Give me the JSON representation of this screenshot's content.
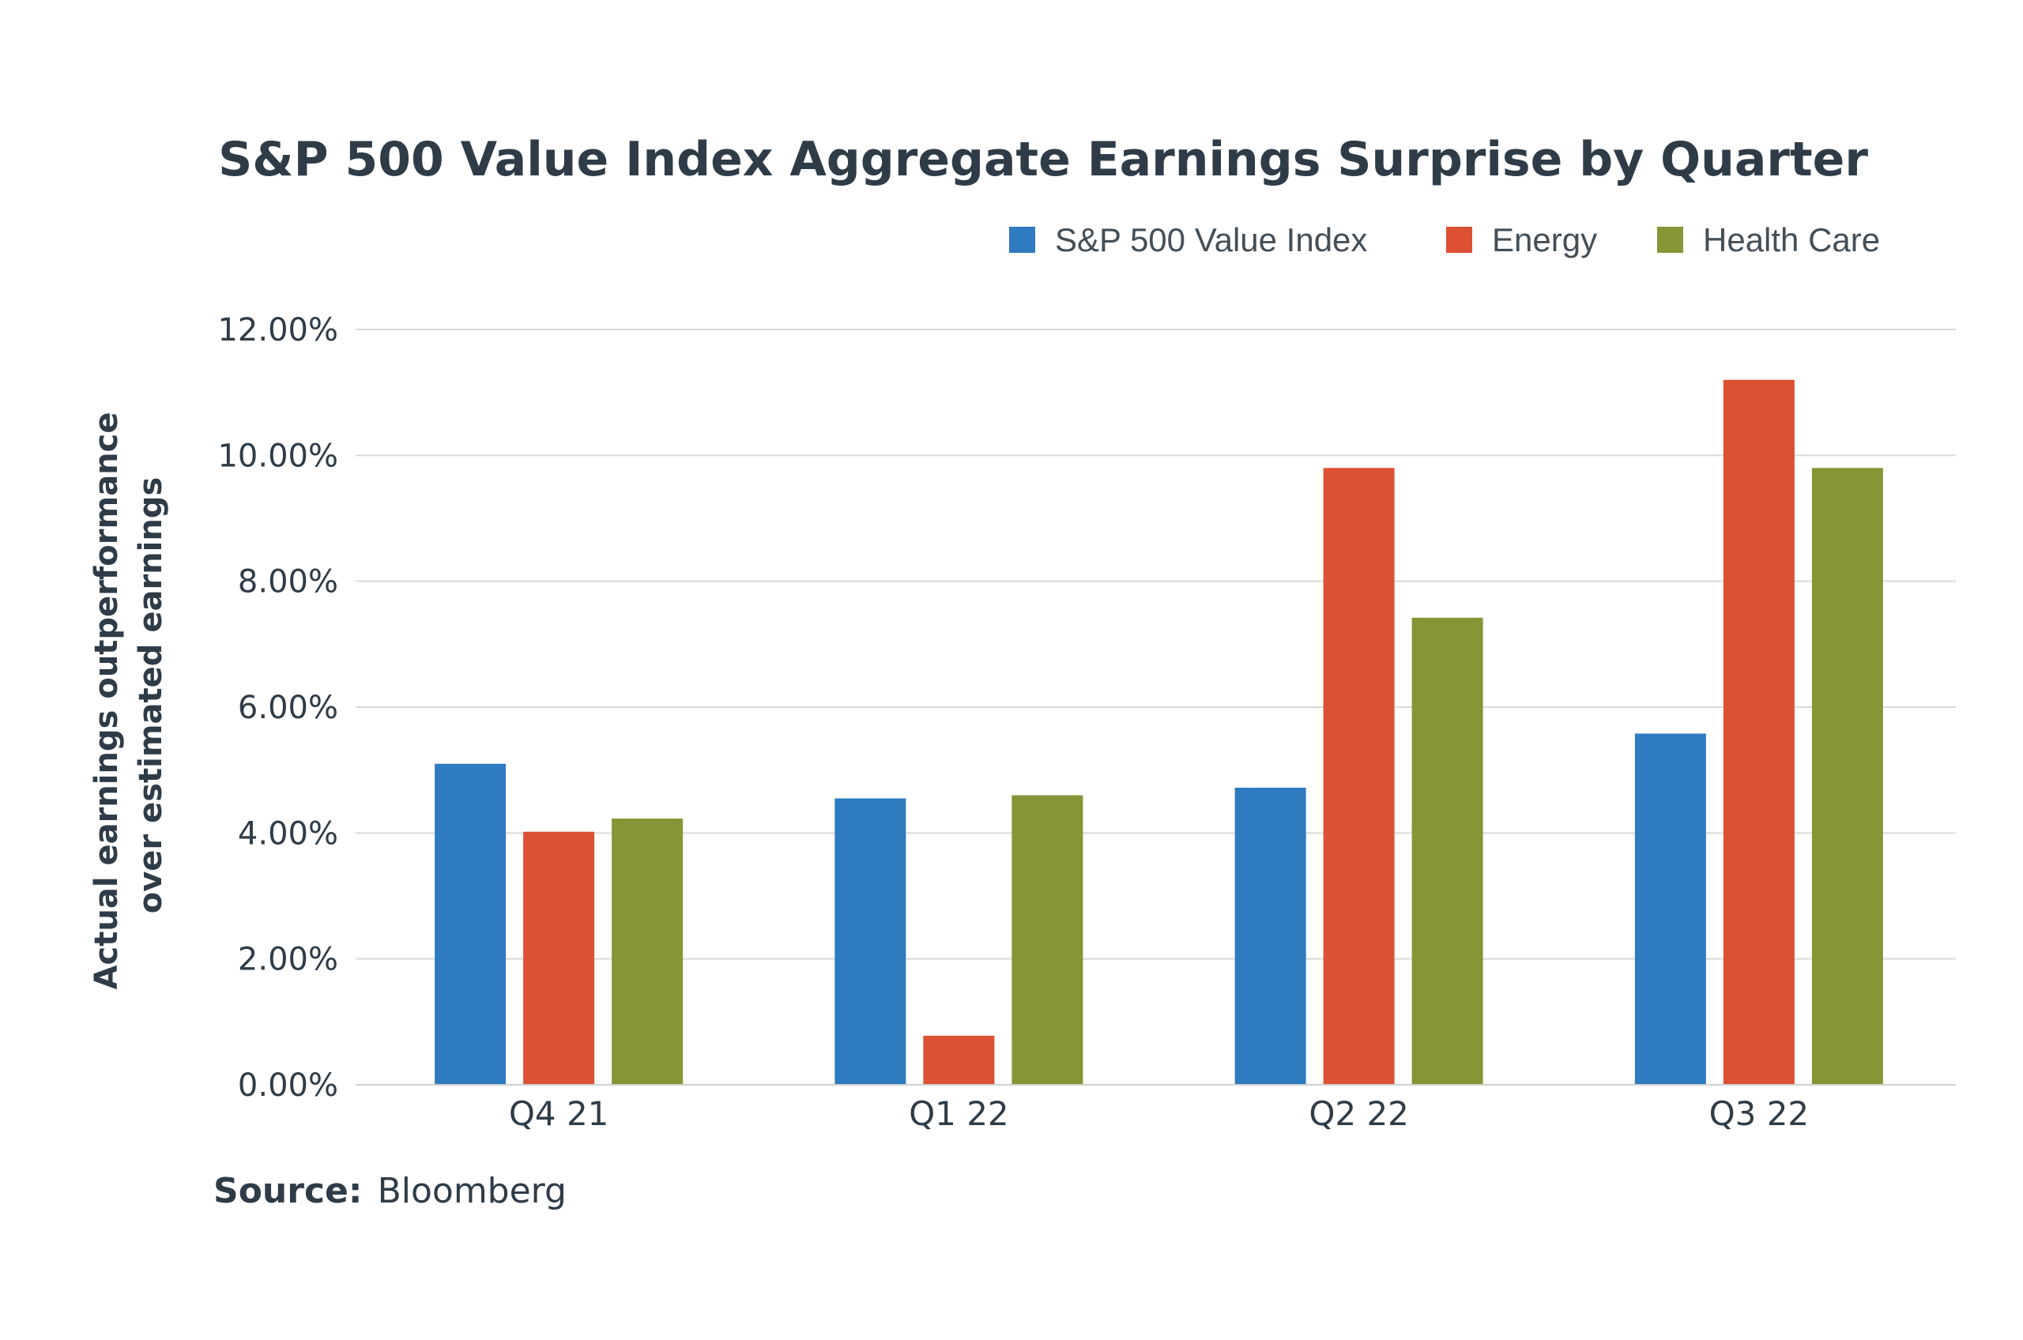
{
  "chart_data": {
    "type": "bar",
    "title": "S&P 500 Value Index Aggregate Earnings Surprise by Quarter",
    "ylabel_lines": [
      "Actual earnings outperformance",
      "over estimated earnings"
    ],
    "xlabel": "",
    "categories": [
      "Q4 21",
      "Q1 22",
      "Q2 22",
      "Q3 22"
    ],
    "series": [
      {
        "name": "S&P 500 Value Index",
        "color": "#2e7bbf",
        "values": [
          5.1,
          4.55,
          4.72,
          5.58
        ]
      },
      {
        "name": "Energy",
        "color": "#dc5034",
        "values": [
          4.02,
          0.78,
          9.8,
          11.2
        ]
      },
      {
        "name": "Health Care",
        "color": "#879536",
        "values": [
          4.23,
          4.6,
          7.42,
          9.8
        ]
      }
    ],
    "ylim": [
      0,
      12
    ],
    "yticks": [
      0,
      2,
      4,
      6,
      8,
      10,
      12
    ],
    "ytick_labels": [
      "0.00%",
      "2.00%",
      "4.00%",
      "6.00%",
      "8.00%",
      "10.00%",
      "12.00%"
    ],
    "grid": true,
    "legend_position": "top-right"
  },
  "source": {
    "label": "Source:",
    "text": "Bloomberg"
  }
}
